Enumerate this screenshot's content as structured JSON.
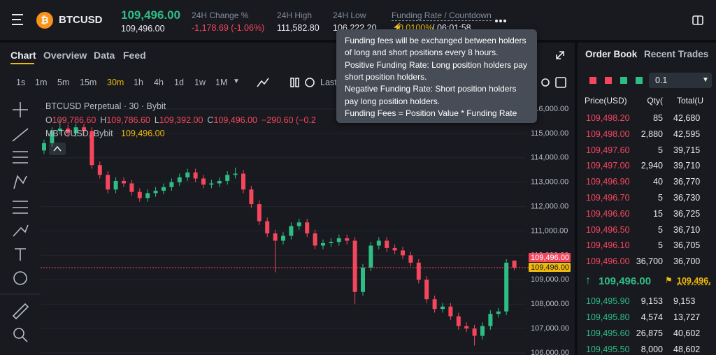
{
  "header": {
    "symbol": "BTCUSD",
    "last_price": "109,496.00",
    "mark_price": "109,496.00",
    "stats": [
      {
        "label": "24H Change %",
        "value": "-1,178.69 (-1.06%)"
      },
      {
        "label": "24H High",
        "value": "111,582.80"
      },
      {
        "label": "24H Low",
        "value": "106,222.20"
      },
      {
        "label": "Funding Rate / Countdown",
        "value": "0.0100%",
        "extra": "/ 06:01:58"
      }
    ]
  },
  "tabs": [
    "Chart",
    "Overview",
    "Data",
    "Feed"
  ],
  "intervals": [
    "1s",
    "1m",
    "5m",
    "15m",
    "30m",
    "1h",
    "4h",
    "1d",
    "1w",
    "1M"
  ],
  "active_interval": 4,
  "price_type": "Last",
  "legend": {
    "title": "BTCUSD Perpetual · 30 · Bybit",
    "ohlc": [
      {
        "key": "O",
        "value": "109,786.60"
      },
      {
        "key": "H",
        "value": "109,786.60"
      },
      {
        "key": "L",
        "value": "109,392.00"
      },
      {
        "key": "C",
        "value": "109,496.00"
      }
    ],
    "change": "−290.60 (−0.2",
    "index_name": "MBTCUSD, Bybit",
    "index_value": "109,496.00"
  },
  "chart": {
    "type": "candlestick",
    "open": [
      114300,
      114600,
      115100,
      115200,
      115000,
      115250,
      115100,
      113700,
      113300,
      112700,
      113050,
      112950,
      112600,
      112350,
      112550,
      112650,
      112800,
      113000,
      113200,
      113400,
      113150,
      112900,
      112950,
      113050,
      113300,
      113350,
      112700,
      112100,
      111400,
      110900,
      110600,
      110800,
      111200,
      111350,
      110900,
      110400,
      110500,
      110550,
      110700,
      110600,
      108500,
      109500,
      110400,
      110600,
      110300,
      110200,
      110000,
      109700,
      109000,
      108200,
      107800,
      107900,
      107500,
      107100,
      107000,
      106700,
      107100,
      107600,
      107700,
      109786.6
    ],
    "high": [
      114750,
      115250,
      115600,
      115350,
      115400,
      115400,
      115250,
      113850,
      113450,
      113200,
      113200,
      113100,
      112750,
      112700,
      112800,
      112950,
      113150,
      113350,
      113550,
      113550,
      113300,
      113100,
      113200,
      113450,
      113600,
      113500,
      112850,
      112250,
      111550,
      111050,
      110950,
      111350,
      111500,
      111500,
      111050,
      110650,
      110700,
      110850,
      110850,
      110750,
      109650,
      110550,
      110750,
      110750,
      110450,
      110350,
      110150,
      109850,
      109150,
      108350,
      108050,
      108050,
      107650,
      107250,
      107150,
      107250,
      107750,
      107850,
      109850,
      109786.6
    ],
    "low": [
      114150,
      114450,
      114950,
      114850,
      114850,
      114950,
      113550,
      113150,
      112550,
      112550,
      112800,
      112450,
      112200,
      112200,
      112400,
      112500,
      112650,
      112850,
      113050,
      113000,
      112750,
      112750,
      112800,
      112900,
      113150,
      112550,
      111950,
      111250,
      110750,
      109300,
      110450,
      110650,
      111050,
      110750,
      110250,
      110250,
      110350,
      110400,
      110450,
      108000,
      108350,
      109350,
      110250,
      110150,
      110050,
      109850,
      109550,
      108850,
      108050,
      107650,
      107650,
      107350,
      106950,
      106850,
      106300,
      106550,
      106950,
      107450,
      107550,
      109392
    ],
    "close": [
      114600,
      115100,
      115200,
      115000,
      115250,
      115100,
      113700,
      113300,
      112700,
      113050,
      112950,
      112600,
      112350,
      112550,
      112650,
      112800,
      113000,
      113200,
      113400,
      113150,
      112900,
      112950,
      113050,
      113300,
      113350,
      112700,
      112100,
      111400,
      110900,
      110600,
      110800,
      111200,
      111350,
      110900,
      110400,
      110500,
      110550,
      110700,
      110600,
      108500,
      109500,
      110400,
      110600,
      110300,
      110200,
      110000,
      109700,
      109000,
      108200,
      107800,
      107900,
      107500,
      107100,
      107000,
      106700,
      107100,
      107600,
      107700,
      109700,
      109496
    ],
    "up_color": "#2ebd85",
    "down_color": "#f6465d",
    "ylim": [
      106000,
      116000
    ],
    "yticks": [
      {
        "value": 116000,
        "label": "116,000.00"
      },
      {
        "value": 115000,
        "label": "115,000.00"
      },
      {
        "value": 114000,
        "label": "114,000.00"
      },
      {
        "value": 113000,
        "label": "113,000.00"
      },
      {
        "value": 112000,
        "label": "112,000.00"
      },
      {
        "value": 111000,
        "label": "111,000.00"
      },
      {
        "value": 110000,
        "label": "110,000.00"
      },
      {
        "value": 109000,
        "label": "109,000.00"
      },
      {
        "value": 108000,
        "label": "108,000.00"
      },
      {
        "value": 107000,
        "label": "107,000.00"
      },
      {
        "value": 106000,
        "label": "106,000.00"
      }
    ],
    "grid": true,
    "last_price": 109496,
    "last_price_label": "109,496.00",
    "index_price_label": "109,496.00"
  },
  "tooltip": {
    "lines": [
      "Funding fees will be exchanged between holders",
      "of long and short positions every 8 hours.",
      "Positive Funding Rate: Long position holders pay",
      "short position holders.",
      "Negative Funding Rate: Short position holders",
      "pay long position holders.",
      "Funding Fees = Position Value * Funding Rate"
    ]
  },
  "order_book": {
    "tabs": [
      "Order Book",
      "Recent Trades"
    ],
    "precision": "0.1",
    "columns": [
      "Price(USD)",
      "Qty(",
      "Total(U"
    ],
    "asks": [
      [
        "109,498.20",
        "85",
        "42,680"
      ],
      [
        "109,498.00",
        "2,880",
        "42,595"
      ],
      [
        "109,497.60",
        "5",
        "39,715"
      ],
      [
        "109,497.00",
        "2,940",
        "39,710"
      ],
      [
        "109,496.90",
        "40",
        "36,770"
      ],
      [
        "109,496.70",
        "5",
        "36,730"
      ],
      [
        "109,496.60",
        "15",
        "36,725"
      ],
      [
        "109,496.50",
        "5",
        "36,710"
      ],
      [
        "109,496.10",
        "5",
        "36,705"
      ],
      [
        "109,496.00",
        "36,700",
        "36,700"
      ]
    ],
    "mid_price": "109,496.00",
    "mark_price": "109,496.",
    "bids": [
      [
        "109,495.90",
        "9,153",
        "9,153"
      ],
      [
        "109,495.80",
        "4,574",
        "13,727"
      ],
      [
        "109,495.60",
        "26,875",
        "40,602"
      ],
      [
        "109,495.50",
        "8,000",
        "48,602"
      ]
    ]
  }
}
